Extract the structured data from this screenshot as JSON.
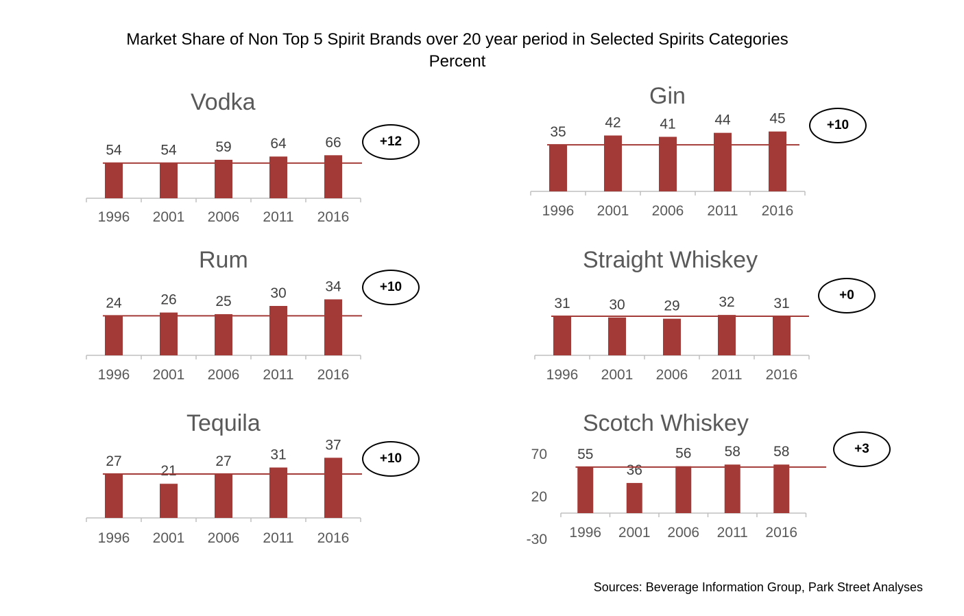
{
  "title": "Market Share of Non Top 5 Spirit Brands over 20 year period in Selected Spirits Categories",
  "subtitle": "Percent",
  "source": "Sources: Beverage Information Group, Park Street Analyses",
  "colors": {
    "bar": "#A33A37",
    "baseline": "#A33A37",
    "axis": "#BFBFBF",
    "label": "#404040",
    "tick": "#595959"
  },
  "chart_data": [
    {
      "type": "bar",
      "title": "Vodka",
      "categories": [
        "1996",
        "2001",
        "2006",
        "2011",
        "2016"
      ],
      "values": [
        54,
        54,
        59,
        64,
        66
      ],
      "change_label": "+12",
      "reference_value": 54
    },
    {
      "type": "bar",
      "title": "Gin",
      "categories": [
        "1996",
        "2001",
        "2006",
        "2011",
        "2016"
      ],
      "values": [
        35,
        42,
        41,
        44,
        45
      ],
      "change_label": "+10",
      "reference_value": 35
    },
    {
      "type": "bar",
      "title": "Rum",
      "categories": [
        "1996",
        "2001",
        "2006",
        "2011",
        "2016"
      ],
      "values": [
        24,
        26,
        25,
        30,
        34
      ],
      "change_label": "+10",
      "reference_value": 24
    },
    {
      "type": "bar",
      "title": "Straight Whiskey",
      "categories": [
        "1996",
        "2001",
        "2006",
        "2011",
        "2016"
      ],
      "values": [
        31,
        30,
        29,
        32,
        31
      ],
      "change_label": "+0",
      "reference_value": 31
    },
    {
      "type": "bar",
      "title": "Tequila",
      "categories": [
        "1996",
        "2001",
        "2006",
        "2011",
        "2016"
      ],
      "values": [
        27,
        21,
        27,
        31,
        37
      ],
      "change_label": "+10",
      "reference_value": 27
    },
    {
      "type": "bar",
      "title": "Scotch Whiskey",
      "categories": [
        "1996",
        "2001",
        "2006",
        "2011",
        "2016"
      ],
      "values": [
        55,
        36,
        56,
        58,
        58
      ],
      "change_label": "+3",
      "reference_value": 55,
      "y_ticks": [
        "70",
        "20",
        "-30"
      ]
    }
  ]
}
